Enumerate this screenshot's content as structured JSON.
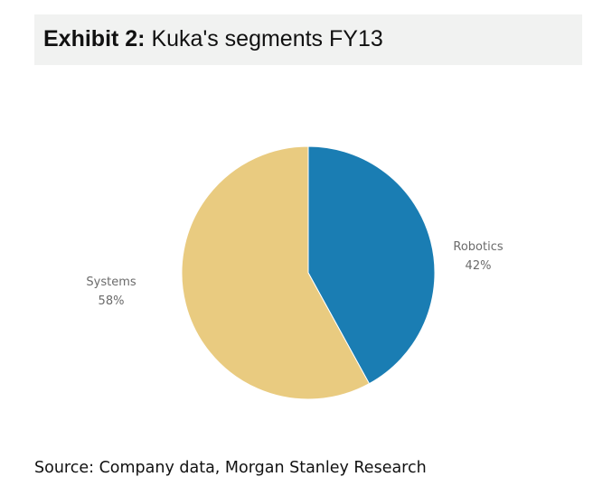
{
  "header": {
    "label": "Exhibit 2:",
    "title": "Kuka's segments FY13"
  },
  "chart_data": {
    "type": "pie",
    "categories": [
      "Robotics",
      "Systems"
    ],
    "values": [
      42,
      58
    ],
    "value_labels": [
      "42%",
      "58%"
    ],
    "colors": [
      "#1a7db3",
      "#e9cb80"
    ],
    "title": "Kuka's segments FY13",
    "legend": "none",
    "start": "12 o'clock, clockwise"
  },
  "source": {
    "text": "Source: Company data, Morgan Stanley Research"
  }
}
